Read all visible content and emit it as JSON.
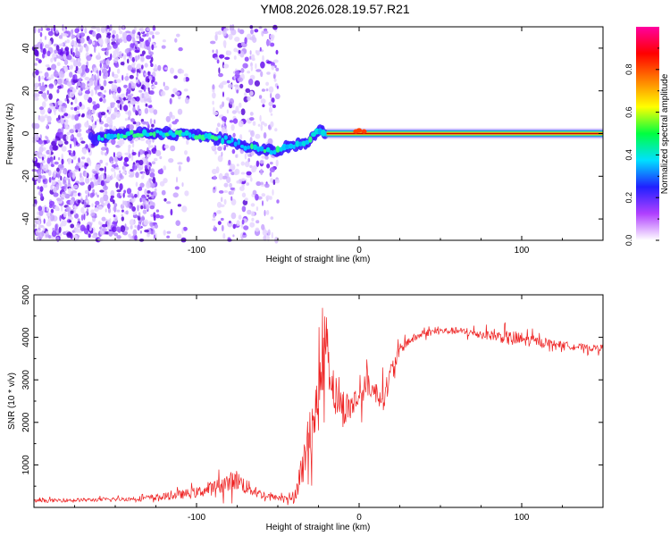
{
  "title": "YM08.2026.028.19.57.R21",
  "colors": {
    "snr_line": "#ee2222",
    "center_band": "#cc0000",
    "axis": "#000000"
  },
  "chart_data": [
    {
      "type": "heatmap",
      "xlabel": "Height of straight line (km)",
      "ylabel": "Frequency (Hz)",
      "xlim": [
        -200,
        150
      ],
      "ylim": [
        -50,
        50
      ],
      "xticks": [
        -100,
        0,
        100
      ],
      "yticks": [
        -40,
        -20,
        0,
        20,
        40
      ],
      "colorbar": {
        "label": "Normalized spectral amplitude",
        "range": [
          0,
          1
        ],
        "ticks": [
          "0.0",
          "0.2",
          "0.4",
          "0.6",
          "0.8"
        ],
        "tick_values": [
          0.0,
          0.2,
          0.4,
          0.6,
          0.8
        ],
        "colormap": [
          "#ffffff",
          "#b040ff",
          "#2020ff",
          "#00e0ff",
          "#00ff40",
          "#ffff00",
          "#ff8000",
          "#ff0000",
          "#ff00a0"
        ]
      },
      "ridge": {
        "x": [
          -160,
          -140,
          -120,
          -100,
          -80,
          -70,
          -60,
          -50,
          -40,
          -30,
          -25,
          -20,
          -10,
          0,
          10,
          20,
          50,
          100,
          150
        ],
        "freq": [
          -2,
          0,
          0,
          -1,
          -3,
          -6,
          -8,
          -8,
          -6,
          -3,
          2,
          0,
          0,
          1,
          0,
          0,
          0,
          0,
          0
        ]
      },
      "noise_regions": [
        {
          "x_range": [
            -200,
            -125
          ],
          "density": "high"
        },
        {
          "x_range": [
            -125,
            -105
          ],
          "density": "low"
        },
        {
          "x_range": [
            -90,
            -50
          ],
          "density": "medium"
        }
      ]
    },
    {
      "type": "line",
      "xlabel": "Height of straight line (km)",
      "ylabel": "SNR (10 * v/v)",
      "xlim": [
        -200,
        150
      ],
      "ylim": [
        0,
        5000
      ],
      "xticks": [
        -100,
        0,
        100
      ],
      "yticks": [
        1000,
        2000,
        3000,
        4000,
        5000
      ],
      "series": [
        {
          "name": "SNR",
          "x": [
            -200,
            -180,
            -160,
            -140,
            -120,
            -100,
            -90,
            -80,
            -75,
            -70,
            -60,
            -50,
            -40,
            -35,
            -30,
            -25,
            -22,
            -20,
            -18,
            -15,
            -10,
            -5,
            0,
            5,
            10,
            15,
            20,
            25,
            30,
            40,
            50,
            60,
            70,
            80,
            90,
            95,
            100,
            110,
            120,
            130,
            140,
            150
          ],
          "y": [
            150,
            170,
            180,
            200,
            250,
            350,
            450,
            600,
            650,
            500,
            300,
            220,
            250,
            900,
            1800,
            2500,
            3500,
            4200,
            3200,
            2700,
            2300,
            2400,
            2600,
            2900,
            2700,
            2600,
            3200,
            3700,
            3900,
            4100,
            4150,
            4150,
            4100,
            4050,
            4000,
            3950,
            3950,
            3900,
            3850,
            3800,
            3750,
            3750
          ],
          "jitter": [
            60,
            60,
            60,
            70,
            120,
            180,
            240,
            320,
            350,
            280,
            150,
            80,
            200,
            600,
            900,
            1000,
            1200,
            1000,
            900,
            700,
            600,
            500,
            450,
            400,
            350,
            450,
            350,
            200,
            150,
            120,
            120,
            120,
            140,
            160,
            220,
            300,
            250,
            150,
            120,
            120,
            110,
            110
          ]
        }
      ]
    }
  ]
}
